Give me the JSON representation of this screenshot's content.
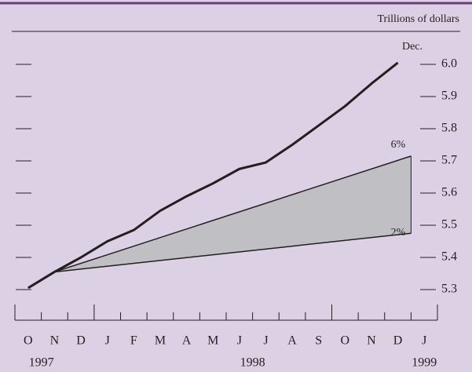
{
  "chart_data": {
    "type": "line",
    "unit_label": "Trillions of dollars",
    "annotations": [
      "Dec.",
      "6%",
      "2%"
    ],
    "xlim": [
      -0.5,
      15.5
    ],
    "xticks": [
      {
        "value": 0,
        "label": "O"
      },
      {
        "value": 1,
        "label": "N"
      },
      {
        "value": 2,
        "label": "D"
      },
      {
        "value": 3,
        "label": "J"
      },
      {
        "value": 4,
        "label": "F"
      },
      {
        "value": 5,
        "label": "M"
      },
      {
        "value": 6,
        "label": "A"
      },
      {
        "value": 7,
        "label": "M"
      },
      {
        "value": 8,
        "label": "J"
      },
      {
        "value": 9,
        "label": "J"
      },
      {
        "value": 10,
        "label": "A"
      },
      {
        "value": 11,
        "label": "S"
      },
      {
        "value": 12,
        "label": "O"
      },
      {
        "value": 13,
        "label": "N"
      },
      {
        "value": 14,
        "label": "D"
      },
      {
        "value": 15,
        "label": "J"
      }
    ],
    "year_ticks": [
      {
        "value": 0.5,
        "label": "1997"
      },
      {
        "value": 8.5,
        "label": "1998"
      },
      {
        "value": 15,
        "label": "1999"
      }
    ],
    "ylim": [
      5.2,
      6.1
    ],
    "yticks": [
      5.3,
      5.4,
      5.5,
      5.6,
      5.7,
      5.8,
      5.9,
      {
        "value": 6,
        "label": "6.0"
      }
    ],
    "series": [
      {
        "color": "#231f20",
        "x": [
          0,
          1,
          2,
          3,
          4,
          5,
          6,
          7,
          8,
          9,
          10,
          11,
          12,
          13,
          14
        ],
        "values": [
          5.305,
          5.355,
          5.4,
          5.45,
          5.485,
          5.545,
          5.59,
          5.63,
          5.675,
          5.695,
          5.75,
          5.81,
          5.87,
          5.94,
          6.005
        ]
      }
    ],
    "cone": {
      "color": "#bfbfc4",
      "x": [
        1,
        14.5
      ],
      "upper": [
        5.355,
        5.715
      ],
      "lower": [
        5.355,
        5.475
      ]
    }
  }
}
